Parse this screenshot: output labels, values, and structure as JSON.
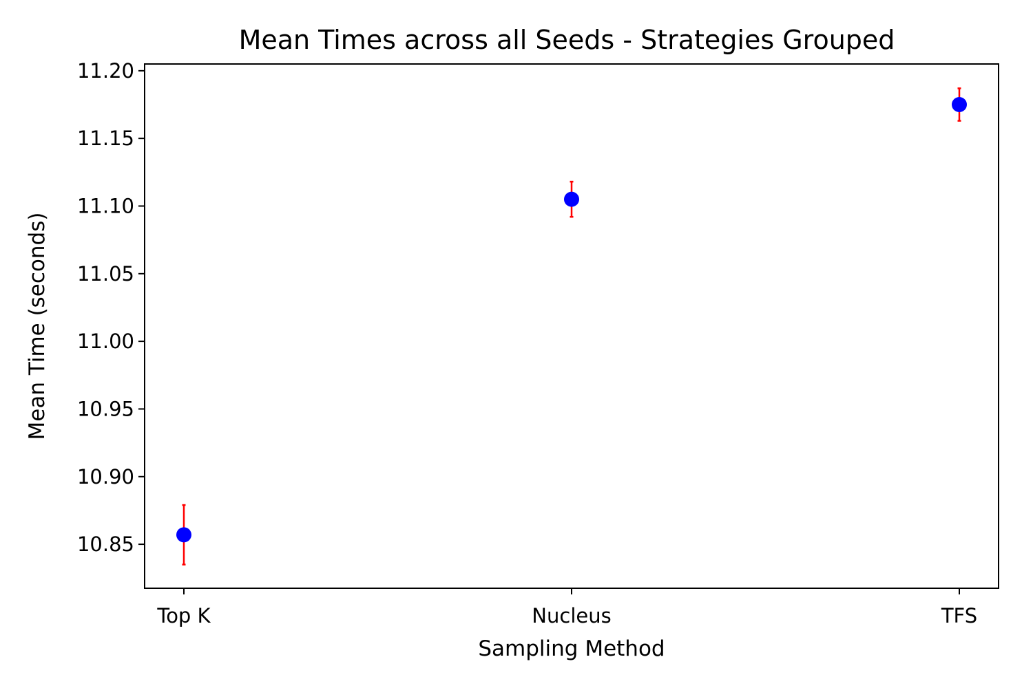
{
  "chart_data": {
    "type": "scatter",
    "title": "Mean Times across all Seeds - Strategies Grouped",
    "xlabel": "Sampling Method",
    "ylabel": "Mean Time (seconds)",
    "categories": [
      "Top K",
      "Nucleus",
      "TFS"
    ],
    "series": [
      {
        "values": [
          10.857,
          11.105,
          11.175
        ],
        "errors": [
          0.022,
          0.013,
          0.012
        ],
        "marker_color": "#0000ff",
        "error_color": "#ff0000"
      }
    ],
    "ylim": [
      10.8175,
      11.205
    ],
    "yticks": [
      10.85,
      10.9,
      10.95,
      11.0,
      11.05,
      11.1,
      11.15,
      11.2
    ],
    "ytick_labels": [
      "10.85",
      "10.90",
      "10.95",
      "11.00",
      "11.05",
      "11.10",
      "11.15",
      "11.20"
    ],
    "grid": false,
    "legend": false
  }
}
